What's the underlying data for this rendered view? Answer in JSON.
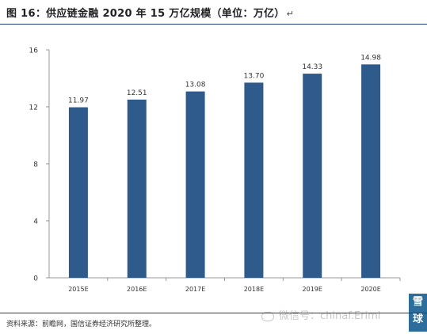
{
  "title": "图 16：供应链金融 2020 年 15 万亿规模（单位：万亿）",
  "title_mark": "↵",
  "source": "资料来源：前瞻网，国信证券经济研究所整理。",
  "watermark": "微信号：chinaf.Eriml",
  "logo_text": [
    "雪",
    "球"
  ],
  "colors": {
    "bar": "#2e5b8c",
    "axis": "#999999",
    "rule": "#1f3c6e"
  },
  "chart_data": {
    "type": "bar",
    "title": "图 16：供应链金融 2020 年 15 万亿规模（单位：万亿）",
    "categories": [
      "2015E",
      "2016E",
      "2017E",
      "2018E",
      "2019E",
      "2020E"
    ],
    "values": [
      11.97,
      12.51,
      13.08,
      13.7,
      14.33,
      14.98
    ],
    "data_labels": [
      "11.97",
      "12.51",
      "13.08",
      "13.70",
      "14.33",
      "14.98"
    ],
    "yticks": [
      "0",
      "4",
      "8",
      "12",
      "16"
    ],
    "ytick_values": [
      0,
      4,
      8,
      12,
      16
    ],
    "ylim": [
      0,
      16
    ],
    "xlabel": "",
    "ylabel": "",
    "grid": false,
    "legend": "none"
  }
}
